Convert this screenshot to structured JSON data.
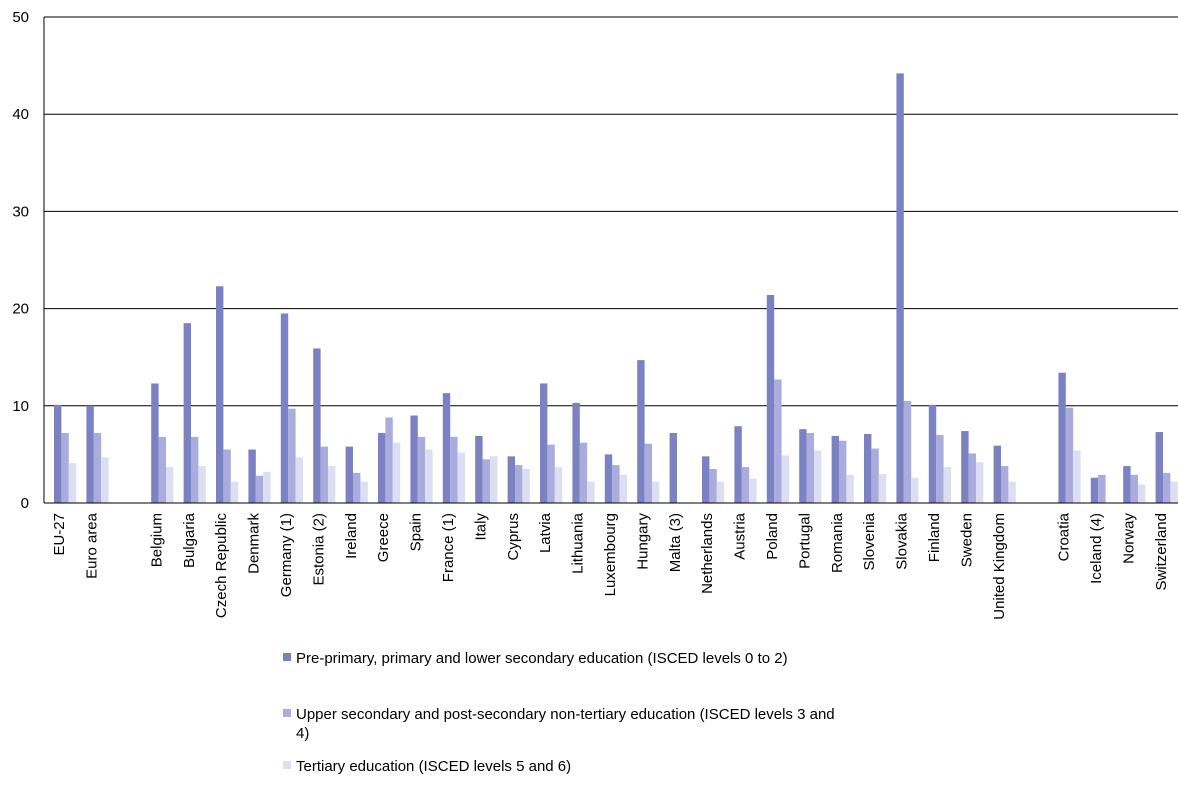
{
  "chart_data": {
    "type": "bar",
    "title": "",
    "xlabel": "",
    "ylabel": "",
    "ylim": [
      0,
      50
    ],
    "yticks": [
      0,
      10,
      20,
      30,
      40,
      50
    ],
    "grid": true,
    "legend_position": "bottom",
    "categories": [
      "EU-27",
      "Euro area",
      "",
      "Belgium",
      "Bulgaria",
      "Czech Republic",
      "Denmark",
      "Germany (1)",
      "Estonia (2)",
      "Ireland",
      "Greece",
      "Spain",
      "France (1)",
      "Italy",
      "Cyprus",
      "Latvia",
      "Lithuania",
      "Luxembourg",
      "Hungary",
      "Malta (3)",
      "Netherlands",
      "Austria",
      "Poland",
      "Portugal",
      "Romania",
      "Slovenia",
      "Slovakia",
      "Finland",
      "Sweden",
      "United Kingdom",
      "",
      "Croatia",
      "Iceland (4)",
      "Norway",
      "Switzerland"
    ],
    "series": [
      {
        "name": "Pre-primary, primary and lower secondary education (ISCED levels 0 to 2)",
        "color": "#7b82c3",
        "values": [
          10.1,
          10.0,
          null,
          12.3,
          18.5,
          22.3,
          5.5,
          19.5,
          15.9,
          5.8,
          7.2,
          9.0,
          11.3,
          6.9,
          4.8,
          12.3,
          10.3,
          5.0,
          14.7,
          7.2,
          4.8,
          7.9,
          21.4,
          7.6,
          6.9,
          7.1,
          44.2,
          10.1,
          7.4,
          5.9,
          null,
          13.4,
          2.6,
          3.8,
          7.3
        ]
      },
      {
        "name": "Upper secondary and post-secondary non-tertiary education (ISCED levels 3 and 4)",
        "color": "#a9acdc",
        "values": [
          7.2,
          7.2,
          null,
          6.8,
          6.8,
          5.5,
          2.8,
          9.7,
          5.8,
          3.1,
          8.8,
          6.8,
          6.8,
          4.5,
          3.9,
          6.0,
          6.2,
          3.9,
          6.1,
          null,
          3.5,
          3.7,
          12.7,
          7.2,
          6.4,
          5.6,
          10.5,
          7.0,
          5.1,
          3.8,
          null,
          9.8,
          2.9,
          2.9,
          3.1
        ]
      },
      {
        "name": "Tertiary education (ISCED levels 5 and 6)",
        "color": "#dcdef2",
        "values": [
          4.1,
          4.7,
          null,
          3.7,
          3.8,
          2.2,
          3.2,
          4.7,
          3.8,
          2.2,
          6.2,
          5.5,
          5.2,
          4.8,
          3.5,
          3.7,
          2.2,
          2.9,
          2.2,
          null,
          2.2,
          2.5,
          4.9,
          5.4,
          2.9,
          3.0,
          2.6,
          3.7,
          4.2,
          2.2,
          null,
          5.4,
          null,
          1.9,
          2.2
        ]
      }
    ]
  }
}
